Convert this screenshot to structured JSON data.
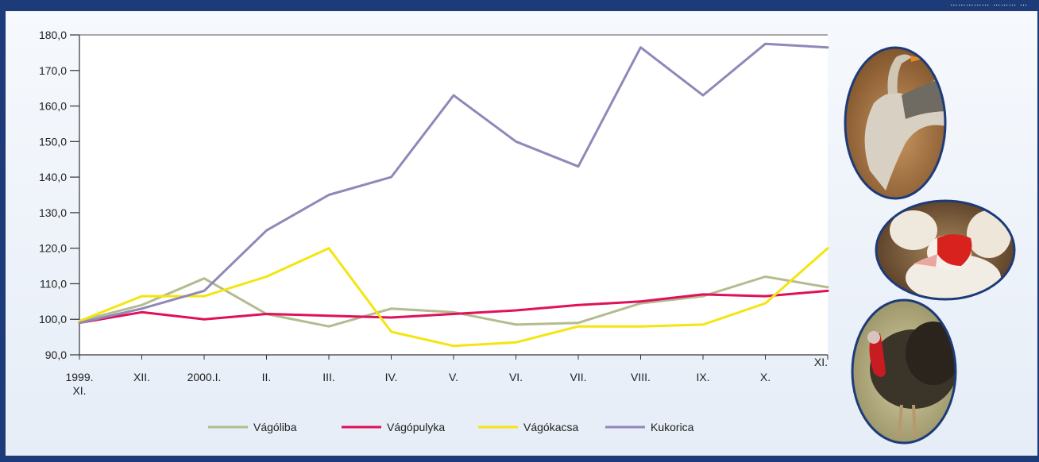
{
  "header": {
    "top_right_text": "…………… ……… …"
  },
  "photos": [
    {
      "icon": "goose-photo"
    },
    {
      "icon": "duck-photo"
    },
    {
      "icon": "turkey-photo"
    }
  ],
  "chart_data": {
    "type": "line",
    "title": "",
    "xlabel": "",
    "ylabel": "",
    "ylim": [
      90,
      180
    ],
    "yticks": [
      "180,0",
      "170,0",
      "160,0",
      "150,0",
      "140,0",
      "130,0",
      "120,0",
      "110,0",
      "100,0",
      "90,0"
    ],
    "categories": [
      "1999. XI.",
      "XII.",
      "2000.I.",
      "II.",
      "III.",
      "IV.",
      "V.",
      "VI.",
      "VII.",
      "VIII.",
      "IX.",
      "X.",
      "XI."
    ],
    "legend_position": "bottom",
    "grid": false,
    "series": [
      {
        "name": "Vágóliba",
        "color": "#b3bc8e",
        "values": [
          99.5,
          104,
          111.5,
          101.5,
          98,
          103,
          102,
          98.5,
          99,
          104.5,
          106.5,
          112,
          109
        ]
      },
      {
        "name": "Vágópulyka",
        "color": "#e0105a",
        "values": [
          99,
          102,
          100,
          101.5,
          101,
          100.5,
          101.5,
          102.5,
          104,
          105,
          107,
          106.5,
          108
        ]
      },
      {
        "name": "Vágókacsa",
        "color": "#f4e510",
        "values": [
          99.5,
          106.5,
          106.5,
          112,
          120,
          96.5,
          92.5,
          93.5,
          98,
          98,
          98.5,
          104.5,
          120
        ]
      },
      {
        "name": "Kukorica",
        "color": "#9088b8",
        "values": [
          99,
          103,
          108,
          125,
          135,
          140,
          163,
          150,
          143,
          176.5,
          163,
          177.5,
          176.5
        ]
      }
    ]
  }
}
